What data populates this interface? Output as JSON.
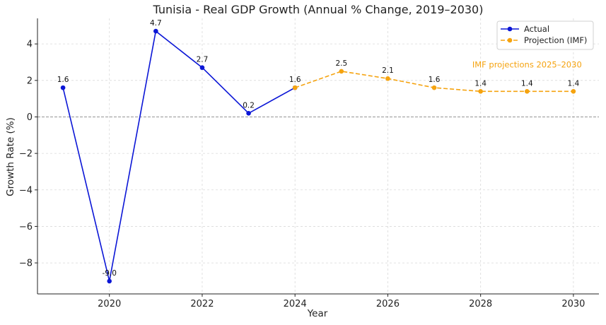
{
  "chart_data": {
    "type": "line",
    "title": "Tunisia - Real GDP Growth (Annual % Change, 2019–2030)",
    "xlabel": "Year",
    "ylabel": "Growth Rate (%)",
    "xlim": [
      2018.45,
      2030.55
    ],
    "ylim": [
      -9.7,
      5.4
    ],
    "xticks": [
      2020,
      2022,
      2024,
      2026,
      2028,
      2030
    ],
    "yticks": [
      -8,
      -6,
      -4,
      -2,
      0,
      2,
      4
    ],
    "ytick_labels": [
      "−8",
      "−6",
      "−4",
      "−2",
      "0",
      "2",
      "4"
    ],
    "grid": true,
    "zero_line": true,
    "legend_position": "top-right",
    "series": [
      {
        "name": "Actual",
        "style": "solid",
        "color": "#0b16d6",
        "x": [
          2019,
          2020,
          2021,
          2022,
          2023,
          2024
        ],
        "values": [
          1.6,
          -9.0,
          4.7,
          2.7,
          0.2,
          1.6
        ],
        "labels": [
          "1.6",
          "-9.0",
          "4.7",
          "2.7",
          "0.2"
        ]
      },
      {
        "name": "Projection (IMF)",
        "style": "dashed",
        "color": "#f5a30f",
        "x": [
          2024,
          2025,
          2026,
          2027,
          2028,
          2029,
          2030
        ],
        "values": [
          1.6,
          2.5,
          2.1,
          1.6,
          1.4,
          1.4,
          1.4
        ],
        "labels": [
          "1.6",
          "2.5",
          "2.1",
          "1.6",
          "1.4",
          "1.4",
          "1.4"
        ]
      }
    ],
    "annotation": {
      "text": "IMF projections 2025–2030",
      "color": "#f5a30f",
      "x": 2029.0,
      "y": 2.7
    }
  }
}
